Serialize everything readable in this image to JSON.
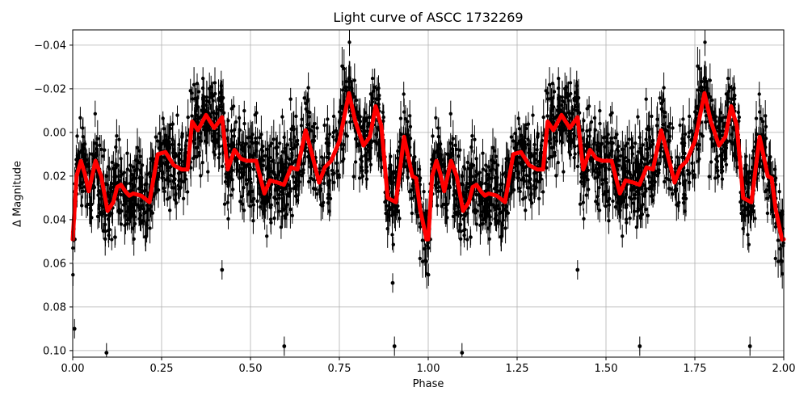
{
  "chart_data": {
    "type": "scatter",
    "title": "Light curve of ASCC 1732269",
    "xlabel": "Phase",
    "ylabel": "Δ Magnitude",
    "xlim": [
      0.0,
      2.0
    ],
    "ylim": [
      0.103,
      -0.047
    ],
    "y_inverted": true,
    "grid": true,
    "legend": null,
    "x_ticks": [
      "0.00",
      "0.25",
      "0.50",
      "0.75",
      "1.00",
      "1.25",
      "1.50",
      "1.75",
      "2.00"
    ],
    "x_tick_values": [
      0.0,
      0.25,
      0.5,
      0.75,
      1.0,
      1.25,
      1.5,
      1.75,
      2.0
    ],
    "y_ticks": [
      "−0.04",
      "−0.02",
      "0.00",
      "0.02",
      "0.04",
      "0.06",
      "0.08",
      "0.10"
    ],
    "y_tick_values": [
      -0.04,
      -0.02,
      0.0,
      0.02,
      0.04,
      0.06,
      0.08,
      0.1
    ],
    "series": [
      {
        "name": "observations",
        "kind": "errorbar-scatter",
        "color": "#000000",
        "description": "Dense phase-folded photometry points with vertical error bars, scattered roughly between -0.045 and 0.10 magnitude, repeated over phase 0-1 and 1-2",
        "notable_outliers": [
          {
            "x": 0.005,
            "y": 0.09
          },
          {
            "x": 0.095,
            "y": 0.101
          },
          {
            "x": 0.42,
            "y": 0.063
          },
          {
            "x": 0.595,
            "y": 0.098
          },
          {
            "x": 0.9,
            "y": 0.069
          },
          {
            "x": 0.905,
            "y": 0.098
          },
          {
            "x": 1.095,
            "y": 0.101
          },
          {
            "x": 1.42,
            "y": 0.063
          },
          {
            "x": 1.595,
            "y": 0.098
          },
          {
            "x": 1.905,
            "y": 0.098
          }
        ]
      },
      {
        "name": "binned model",
        "kind": "line",
        "color": "#ff0000",
        "x": [
          0.0,
          0.011,
          0.023,
          0.034,
          0.045,
          0.064,
          0.08,
          0.098,
          0.114,
          0.125,
          0.136,
          0.148,
          0.159,
          0.17,
          0.193,
          0.216,
          0.239,
          0.261,
          0.284,
          0.307,
          0.323,
          0.336,
          0.352,
          0.375,
          0.398,
          0.42,
          0.436,
          0.455,
          0.473,
          0.489,
          0.5,
          0.516,
          0.539,
          0.555,
          0.577,
          0.594,
          0.614,
          0.632,
          0.655,
          0.67,
          0.693,
          0.709,
          0.727,
          0.75,
          0.777,
          0.795,
          0.818,
          0.836,
          0.852,
          0.868,
          0.886,
          0.909,
          0.932,
          0.955,
          0.966,
          0.977,
          0.995,
          1.0
        ],
        "y": [
          0.049,
          0.02,
          0.013,
          0.019,
          0.027,
          0.013,
          0.02,
          0.036,
          0.032,
          0.025,
          0.024,
          0.027,
          0.029,
          0.028,
          0.029,
          0.032,
          0.01,
          0.009,
          0.015,
          0.017,
          0.017,
          -0.005,
          -0.001,
          -0.008,
          -0.002,
          -0.007,
          0.017,
          0.008,
          0.012,
          0.013,
          0.013,
          0.013,
          0.028,
          0.022,
          0.023,
          0.024,
          0.016,
          0.017,
          -0.001,
          0.008,
          0.023,
          0.016,
          0.013,
          0.004,
          -0.018,
          -0.005,
          0.006,
          0.002,
          -0.012,
          -0.003,
          0.03,
          0.032,
          0.002,
          0.02,
          0.021,
          0.035,
          0.049,
          0.049
        ],
        "repeats_over": [
          0.0,
          2.0
        ]
      }
    ]
  }
}
